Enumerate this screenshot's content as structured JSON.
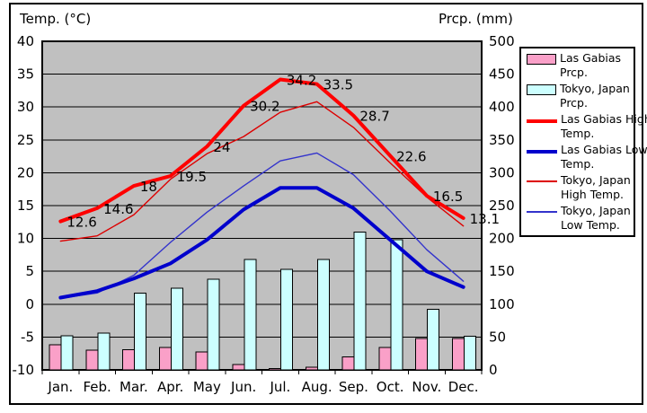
{
  "titles": {
    "left_axis": "Temp. (°C)",
    "right_axis": "Prcp. (mm)"
  },
  "chart_data": {
    "type": "combo-bar-line",
    "categories": [
      "Jan.",
      "Feb.",
      "Mar.",
      "Apr.",
      "May",
      "Jun.",
      "Jul.",
      "Aug.",
      "Sep.",
      "Oct.",
      "Nov.",
      "Dec."
    ],
    "temp_axis": {
      "label": "Temp. (°C)",
      "min": -10,
      "max": 40,
      "ticks": [
        40,
        35,
        30,
        25,
        20,
        15,
        10,
        5,
        0,
        -5,
        -10
      ]
    },
    "prcp_axis": {
      "label": "Prcp. (mm)",
      "min": 0,
      "max": 500,
      "ticks": [
        500,
        450,
        400,
        350,
        300,
        250,
        200,
        150,
        100,
        50,
        0
      ]
    },
    "plot_bg": "#c0c0c0",
    "grid": true,
    "legend_position": "right",
    "series": [
      {
        "name": "Las Gabias Prcp.",
        "legend_lines": [
          "Las Gabias",
          "Prcp."
        ],
        "type": "bar",
        "axis": "prcp",
        "color": "#faa0c8",
        "values": [
          38,
          30,
          31,
          34,
          27,
          8,
          2,
          4,
          20,
          34,
          48,
          48
        ]
      },
      {
        "name": "Tokyo, Japan Prcp.",
        "legend_lines": [
          "Tokyo, Japan",
          "Prcp."
        ],
        "type": "bar",
        "axis": "prcp",
        "color": "#ccffff",
        "values": [
          52,
          56,
          117,
          124,
          138,
          168,
          153,
          168,
          210,
          198,
          92,
          51
        ]
      },
      {
        "name": "Las Gabias High Temp.",
        "legend_lines": [
          "Las Gabias High",
          "Temp."
        ],
        "type": "line",
        "axis": "temp",
        "color": "#ff0000",
        "thick": true,
        "values": [
          12.6,
          14.6,
          18,
          19.5,
          24,
          30.2,
          34.2,
          33.5,
          28.7,
          22.6,
          16.5,
          13.1
        ],
        "point_labels": [
          "12.6",
          "14.6",
          "18",
          "19.5",
          "24",
          "30.2",
          "34.2",
          "33.5",
          "28.7",
          "22.6",
          "16.5",
          "13.1"
        ]
      },
      {
        "name": "Las Gabias Low Temp.",
        "legend_lines": [
          "Las Gabias Low",
          "Temp."
        ],
        "type": "line",
        "axis": "temp",
        "color": "#0000cc",
        "thick": true,
        "values": [
          1,
          2,
          3.9,
          6.2,
          9.8,
          14.4,
          17.7,
          17.7,
          14.6,
          9.8,
          5,
          2.6
        ]
      },
      {
        "name": "Tokyo, Japan High Temp.",
        "legend_lines": [
          "Tokyo, Japan",
          "High Temp."
        ],
        "type": "line",
        "axis": "temp",
        "color": "#dd0000",
        "thick": false,
        "values": [
          9.6,
          10.4,
          13.6,
          19,
          22.9,
          25.5,
          29.2,
          30.8,
          26.9,
          21.5,
          16.3,
          11.9
        ]
      },
      {
        "name": "Tokyo, Japan Low Temp.",
        "legend_lines": [
          "Tokyo, Japan",
          "Low Temp."
        ],
        "type": "line",
        "axis": "temp",
        "color": "#3333cc",
        "thick": false,
        "values": [
          0.9,
          1.7,
          4.4,
          9.4,
          14,
          18,
          21.8,
          23,
          19.7,
          14.2,
          8.3,
          3.5
        ]
      }
    ]
  }
}
